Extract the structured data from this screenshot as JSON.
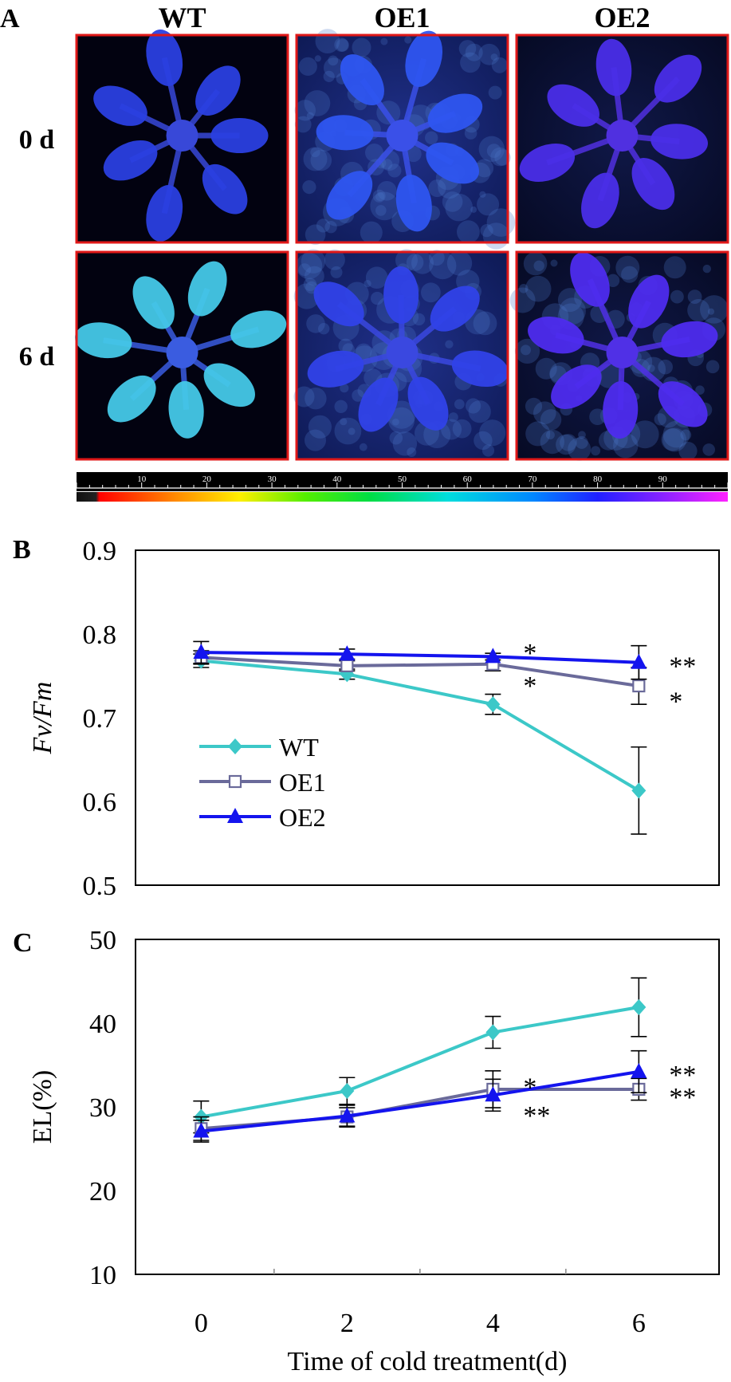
{
  "panel_a": {
    "letter": "A",
    "columns": [
      "WT",
      "OE1",
      "OE2"
    ],
    "rows": [
      "0 d",
      "6 d"
    ],
    "images": [
      {
        "genotype": "WT",
        "day": "0 d",
        "description": "seedling fluorescence image, blue"
      },
      {
        "genotype": "OE1",
        "day": "0 d",
        "description": "seedling fluorescence image, blue"
      },
      {
        "genotype": "OE2",
        "day": "0 d",
        "description": "seedling fluorescence image, blue-violet"
      },
      {
        "genotype": "WT",
        "day": "6 d",
        "description": "seedling fluorescence image, cyan"
      },
      {
        "genotype": "OE1",
        "day": "6 d",
        "description": "seedling fluorescence image, blue"
      },
      {
        "genotype": "OE2",
        "day": "6 d",
        "description": "seedling fluorescence image, blue-violet"
      }
    ],
    "colorbar_ticks": [
      "10",
      "20",
      "30",
      "40",
      "50",
      "60",
      "70",
      "80",
      "90"
    ],
    "colorbar_range": [
      0,
      100
    ]
  },
  "chart_data": [
    {
      "type": "line",
      "panel": "B",
      "x": [
        0,
        2,
        4,
        6
      ],
      "xlim": [
        -0.9,
        7.1
      ],
      "ylim": [
        0.5,
        0.9
      ],
      "yticks": [
        "0.5",
        "0.6",
        "0.7",
        "0.8",
        "0.9"
      ],
      "ylabel": "Fv/Fm",
      "legend_position": "center-left",
      "series": [
        {
          "name": "WT",
          "color": "#3cc8c8",
          "marker": "diamond",
          "values": [
            0.768,
            0.752,
            0.716,
            0.613
          ],
          "errors": [
            0.008,
            0.006,
            0.012,
            0.052
          ]
        },
        {
          "name": "OE1",
          "color": "#6a6a9a",
          "marker": "open-square",
          "values": [
            0.772,
            0.762,
            0.764,
            0.738
          ],
          "errors": [
            0.008,
            0.006,
            0.008,
            0.022
          ]
        },
        {
          "name": "OE2",
          "color": "#1414ee",
          "marker": "triangle",
          "values": [
            0.778,
            0.776,
            0.773,
            0.766
          ],
          "errors": [
            0.013,
            0.006,
            0.004,
            0.02
          ]
        }
      ],
      "annotations": [
        {
          "text": "*",
          "x": 4,
          "y": 0.784
        },
        {
          "text": "*",
          "x": 4,
          "y": 0.745
        },
        {
          "text": "**",
          "x": 6,
          "y": 0.768
        },
        {
          "text": "*",
          "x": 6,
          "y": 0.726
        }
      ]
    },
    {
      "type": "line",
      "panel": "C",
      "x": [
        0,
        2,
        4,
        6
      ],
      "xlim": [
        -0.9,
        7.1
      ],
      "ylim": [
        10,
        50
      ],
      "yticks": [
        "10",
        "20",
        "30",
        "40",
        "50"
      ],
      "xticks": [
        "0",
        "2",
        "4",
        "6"
      ],
      "xlabel": "Time of cold treatment(d)",
      "ylabel": "EL(%)",
      "series": [
        {
          "name": "WT",
          "color": "#3cc8c8",
          "marker": "diamond",
          "values": [
            28.8,
            31.9,
            38.9,
            41.9
          ],
          "errors": [
            1.9,
            1.6,
            1.9,
            3.5
          ]
        },
        {
          "name": "OE1",
          "color": "#6a6a9a",
          "marker": "open-square",
          "values": [
            27.4,
            28.8,
            32.1,
            32.1
          ],
          "errors": [
            1.4,
            1.1,
            2.2,
            1.3
          ]
        },
        {
          "name": "OE2",
          "color": "#1414ee",
          "marker": "triangle",
          "values": [
            27.1,
            28.9,
            31.4,
            34.2
          ],
          "errors": [
            1.3,
            1.3,
            1.9,
            2.5
          ]
        }
      ],
      "annotations": [
        {
          "text": "*",
          "x": 4,
          "y": 33.0
        },
        {
          "text": "**",
          "x": 4,
          "y": 29.6
        },
        {
          "text": "**",
          "x": 6,
          "y": 34.5
        },
        {
          "text": "**",
          "x": 6,
          "y": 31.8
        }
      ]
    }
  ],
  "panel_b": {
    "letter": "B"
  },
  "panel_c": {
    "letter": "C"
  }
}
